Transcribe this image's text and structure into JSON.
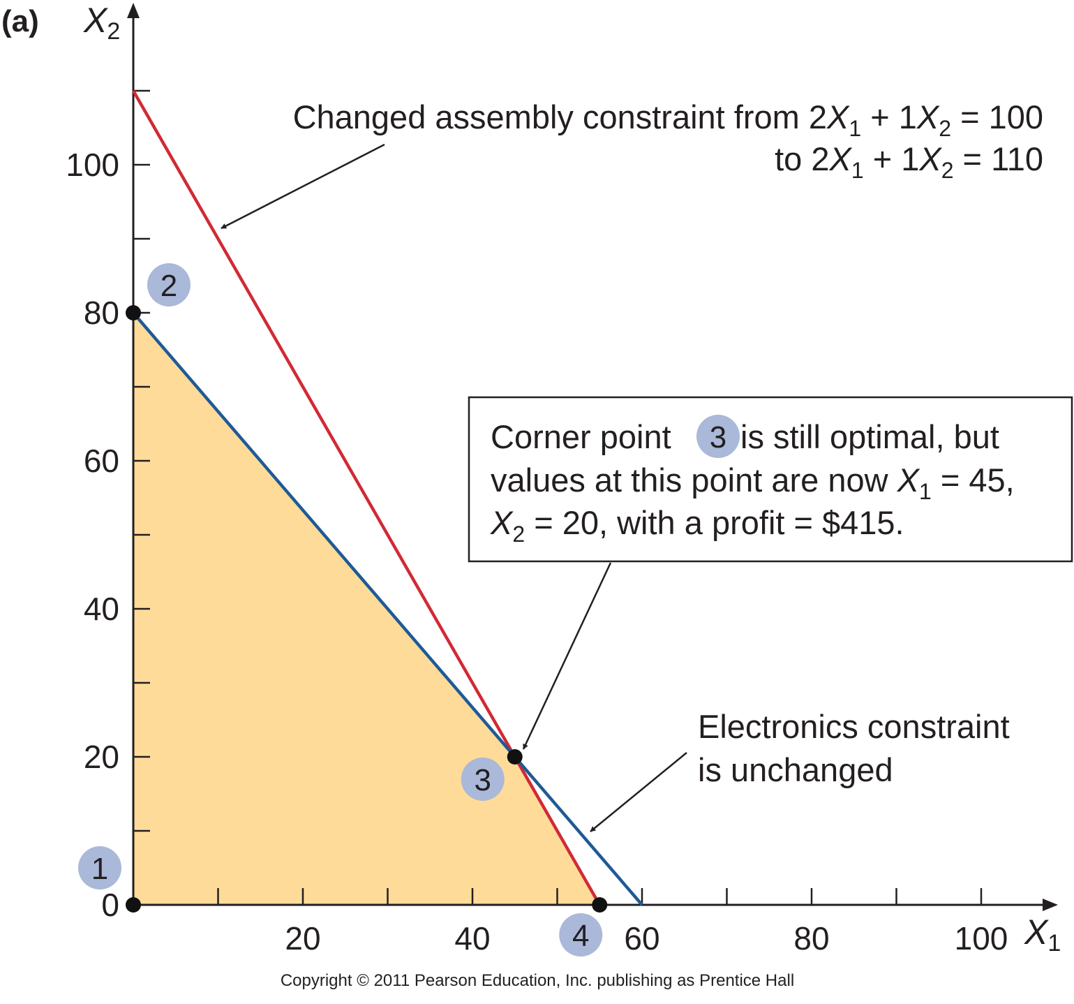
{
  "panel_label": "(a)",
  "copyright": "Copyright © 2011 Pearson Education, Inc. publishing as Prentice Hall",
  "colors": {
    "feasible_fill": "#fedb99",
    "assembly_line": "#d12a35",
    "electronics_line": "#1e5a96",
    "badge_fill": "#aab8d9",
    "axis": "#231f20"
  },
  "chart_data": {
    "type": "line",
    "xlabel": {
      "var": "X",
      "sub": "1"
    },
    "ylabel": {
      "var": "X",
      "sub": "2"
    },
    "xlim": [
      0,
      105
    ],
    "ylim": [
      0,
      112
    ],
    "x_ticks": [
      10,
      20,
      30,
      40,
      50,
      60,
      70,
      80,
      90,
      100
    ],
    "x_tick_labels": [
      "20",
      "40",
      "60",
      "80",
      "100"
    ],
    "x_tick_label_values": [
      20,
      40,
      60,
      80,
      100
    ],
    "y_ticks": [
      10,
      20,
      30,
      40,
      50,
      60,
      70,
      80,
      90,
      100,
      110
    ],
    "y_tick_labels": [
      "0",
      "20",
      "40",
      "60",
      "80",
      "100"
    ],
    "y_tick_label_values": [
      0,
      20,
      40,
      60,
      80,
      100
    ],
    "grid": false,
    "series": [
      {
        "id": "assembly",
        "points": [
          [
            0,
            110
          ],
          [
            55,
            0
          ]
        ]
      },
      {
        "id": "electronics",
        "points": [
          [
            0,
            80
          ],
          [
            60,
            0
          ]
        ]
      }
    ],
    "feasible_region": [
      [
        0,
        0
      ],
      [
        0,
        80
      ],
      [
        45,
        20
      ],
      [
        55,
        0
      ]
    ],
    "corner_points": [
      {
        "label": "1",
        "x": 0,
        "y": 0
      },
      {
        "label": "2",
        "x": 0,
        "y": 80
      },
      {
        "label": "3",
        "x": 45,
        "y": 20
      },
      {
        "label": "4",
        "x": 55,
        "y": 0
      }
    ],
    "annotations": {
      "assembly": {
        "line1": {
          "a": "Changed assembly constraint from 2",
          "b": " + 1",
          "c": " = 100"
        },
        "line2": {
          "a": "to 2",
          "b": " + 1",
          "c": " = 110"
        }
      },
      "box": {
        "line1": {
          "a": "Corner point ",
          "badge": "3",
          "b": " is still optimal, but"
        },
        "line2": {
          "a": "values at this point are now ",
          "b": " = 45,"
        },
        "line3": {
          "a": " = 20, with a profit = $415."
        }
      },
      "electronics": {
        "line1": "Electronics constraint",
        "line2": "is unchanged"
      }
    }
  }
}
